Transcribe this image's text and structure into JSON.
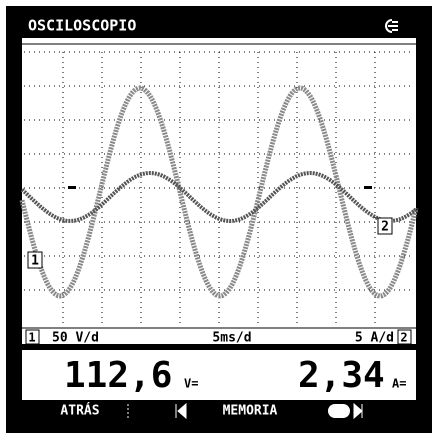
{
  "header": {
    "title": "OSCILOSCOPIO"
  },
  "trace_labels": [
    "1",
    "2"
  ],
  "scale": {
    "channel_1": "1",
    "volts_per_div": "50 V/d",
    "time_per_div": "5ms/d",
    "amps_per_div": "5 A/d",
    "channel_2": "2"
  },
  "readings": [
    {
      "value": "112,6",
      "unit": "V="
    },
    {
      "value": "2,34",
      "unit": "A="
    }
  ],
  "menu": [
    "ATRÁS",
    "MEMORIA"
  ]
}
